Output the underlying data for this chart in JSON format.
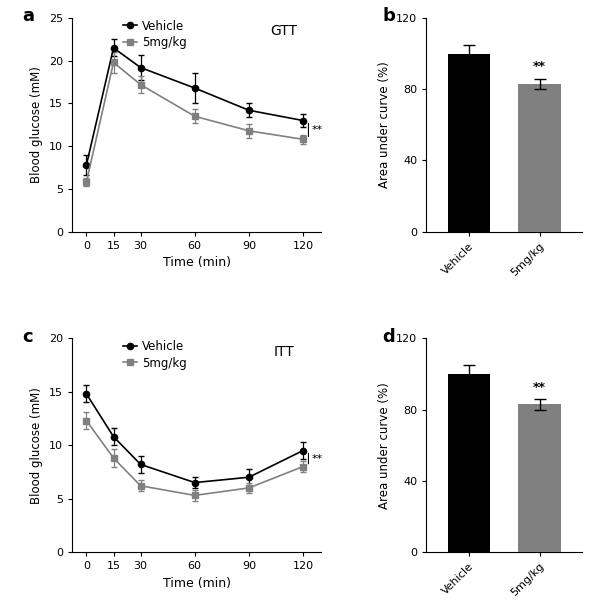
{
  "panel_a": {
    "label": "a",
    "title": "GTT",
    "xlabel": "Time (min)",
    "ylabel": "Blood glucose (mM)",
    "time": [
      0,
      15,
      30,
      60,
      90,
      120
    ],
    "vehicle_mean": [
      7.8,
      21.5,
      19.2,
      16.8,
      14.2,
      13.0
    ],
    "vehicle_err": [
      1.2,
      1.0,
      1.5,
      1.8,
      0.8,
      0.8
    ],
    "treatment_mean": [
      5.8,
      19.8,
      17.2,
      13.5,
      11.8,
      10.8
    ],
    "treatment_err": [
      0.5,
      1.2,
      1.0,
      0.8,
      0.8,
      0.5
    ],
    "ylim": [
      0,
      25
    ],
    "yticks": [
      0,
      5,
      10,
      15,
      20,
      25
    ],
    "significance": "**"
  },
  "panel_b": {
    "label": "b",
    "ylabel": "Area under curve (%)",
    "categories": [
      "Vehicle",
      "5mg/kg"
    ],
    "values": [
      100,
      83
    ],
    "errors": [
      5,
      3
    ],
    "bar_colors": [
      "#000000",
      "#808080"
    ],
    "ylim": [
      0,
      120
    ],
    "yticks": [
      0,
      40,
      80,
      120
    ],
    "significance": "**"
  },
  "panel_c": {
    "label": "c",
    "title": "ITT",
    "xlabel": "Time (min)",
    "ylabel": "Blood glucose (mM)",
    "time": [
      0,
      15,
      30,
      60,
      90,
      120
    ],
    "vehicle_mean": [
      14.8,
      10.8,
      8.2,
      6.5,
      7.0,
      9.5
    ],
    "vehicle_err": [
      0.8,
      0.8,
      0.8,
      0.5,
      0.8,
      0.8
    ],
    "treatment_mean": [
      12.3,
      8.8,
      6.2,
      5.3,
      6.0,
      8.0
    ],
    "treatment_err": [
      0.8,
      0.8,
      0.5,
      0.5,
      0.5,
      0.5
    ],
    "ylim": [
      0,
      20
    ],
    "yticks": [
      0,
      5,
      10,
      15,
      20
    ],
    "significance": "**"
  },
  "panel_d": {
    "label": "d",
    "ylabel": "Area under curve (%)",
    "categories": [
      "Vehicle",
      "5mg/kg"
    ],
    "values": [
      100,
      83
    ],
    "errors": [
      5,
      3
    ],
    "bar_colors": [
      "#000000",
      "#808080"
    ],
    "ylim": [
      0,
      120
    ],
    "yticks": [
      0,
      40,
      80,
      120
    ],
    "significance": "**"
  },
  "vehicle_color": "#000000",
  "treatment_color": "#808080",
  "legend_vehicle": "Vehicle",
  "legend_treatment": "5mg/kg"
}
